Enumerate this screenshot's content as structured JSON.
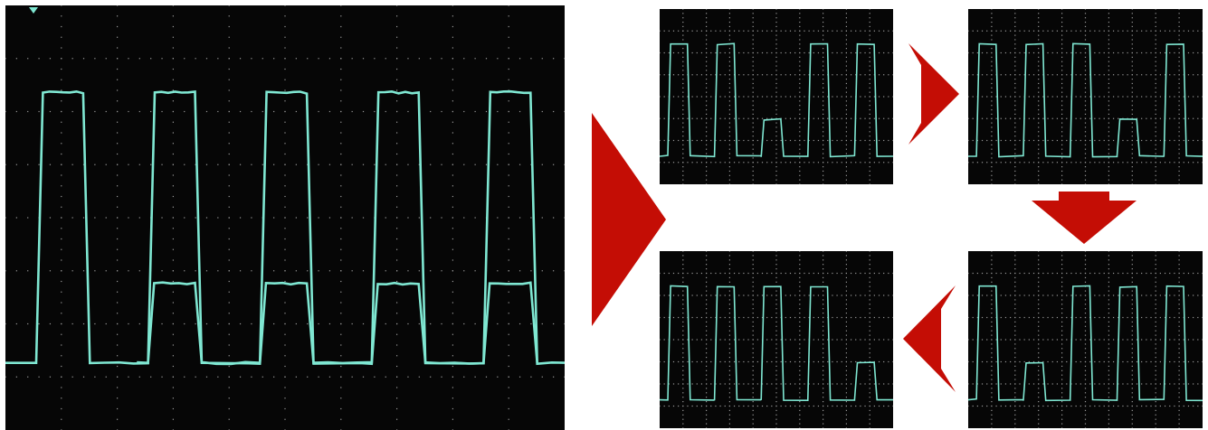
{
  "colors": {
    "background": "#ffffff",
    "screen": "#060606",
    "trace": "#7fe7d2",
    "grid": "#9a9a9a",
    "arrow": "#c40d05"
  },
  "scopes": [
    {
      "id": "main",
      "levels": [
        2,
        1,
        2,
        1,
        2,
        1,
        2,
        1,
        2,
        1
      ],
      "step": 1
    },
    {
      "id": "frame1",
      "levels": [
        2,
        2,
        1,
        2,
        2
      ],
      "step": 2
    },
    {
      "id": "frame2",
      "levels": [
        2,
        2,
        2,
        1,
        2
      ],
      "step": 2
    },
    {
      "id": "frame3",
      "levels": [
        2,
        1,
        2,
        2,
        2
      ],
      "step": 2
    },
    {
      "id": "frame4",
      "levels": [
        2,
        2,
        2,
        2,
        1
      ],
      "step": 2
    }
  ],
  "arrows": [
    {
      "id": "big-arrow",
      "direction": "right"
    },
    {
      "id": "arrow-1-to-2",
      "direction": "right"
    },
    {
      "id": "arrow-2-to-3",
      "direction": "down"
    },
    {
      "id": "arrow-3-to-4",
      "direction": "left"
    }
  ]
}
